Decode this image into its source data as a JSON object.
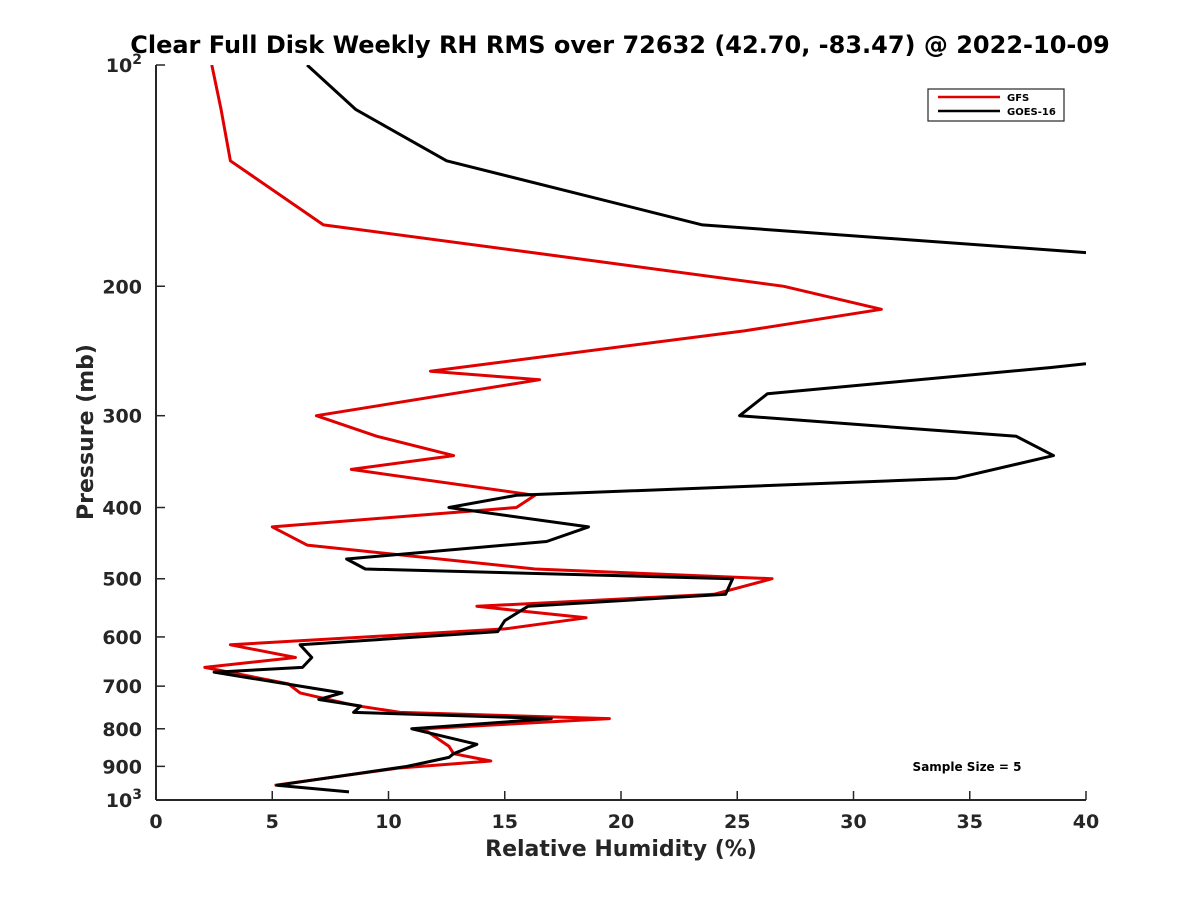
{
  "chart_data": {
    "type": "line",
    "title": "Clear Full Disk Weekly RH RMS over 72632 (42.70, -83.47) @ 2022-10-09",
    "xlabel": "Relative Humidity (%)",
    "ylabel": "Pressure (mb)",
    "xlim": [
      0,
      40
    ],
    "ylim": [
      100,
      1000
    ],
    "y_scale": "log",
    "y_reversed": true,
    "x_ticks": [
      0,
      5,
      10,
      15,
      20,
      25,
      30,
      35,
      40
    ],
    "y_ticks": [
      {
        "value": 100,
        "label": "10",
        "sup": "2"
      },
      {
        "value": 200,
        "label": "200",
        "sup": ""
      },
      {
        "value": 300,
        "label": "300",
        "sup": ""
      },
      {
        "value": 400,
        "label": "400",
        "sup": ""
      },
      {
        "value": 500,
        "label": "500",
        "sup": ""
      },
      {
        "value": 600,
        "label": "600",
        "sup": ""
      },
      {
        "value": 700,
        "label": "700",
        "sup": ""
      },
      {
        "value": 800,
        "label": "800",
        "sup": ""
      },
      {
        "value": 900,
        "label": "900",
        "sup": ""
      },
      {
        "value": 1000,
        "label": "10",
        "sup": "3"
      }
    ],
    "grid": false,
    "legend_position": "top-right",
    "annotation": "Sample Size = 5",
    "series": [
      {
        "name": "GFS",
        "color": "#e00000",
        "points": [
          [
            2.4,
            100
          ],
          [
            2.8,
            115
          ],
          [
            3.2,
            135
          ],
          [
            7.2,
            165
          ],
          [
            16.2,
            180
          ],
          [
            27.0,
            200
          ],
          [
            31.2,
            215
          ],
          [
            25.3,
            230
          ],
          [
            11.8,
            261
          ],
          [
            16.5,
            268
          ],
          [
            6.9,
            300
          ],
          [
            9.5,
            320
          ],
          [
            12.8,
            340
          ],
          [
            8.4,
            355
          ],
          [
            16.3,
            385
          ],
          [
            15.5,
            400
          ],
          [
            5.0,
            425
          ],
          [
            6.5,
            450
          ],
          [
            16.3,
            485
          ],
          [
            26.5,
            500
          ],
          [
            24.0,
            525
          ],
          [
            13.8,
            545
          ],
          [
            18.5,
            565
          ],
          [
            15.0,
            585
          ],
          [
            3.2,
            615
          ],
          [
            6.0,
            640
          ],
          [
            2.1,
            660
          ],
          [
            5.7,
            695
          ],
          [
            6.2,
            715
          ],
          [
            8.5,
            743
          ],
          [
            10.5,
            760
          ],
          [
            19.5,
            775
          ],
          [
            11.5,
            800
          ],
          [
            12.0,
            820
          ],
          [
            12.6,
            845
          ],
          [
            12.8,
            865
          ],
          [
            14.4,
            885
          ],
          [
            10.4,
            905
          ],
          [
            5.1,
            955
          ]
        ]
      },
      {
        "name": "GOES-16",
        "color": "#000000",
        "points": [
          [
            6.5,
            100
          ],
          [
            8.6,
            115
          ],
          [
            12.5,
            135
          ],
          [
            23.5,
            165
          ],
          [
            40.0,
            180
          ],
          [
            null,
            200
          ],
          [
            40.0,
            255
          ],
          [
            38.5,
            258
          ],
          [
            26.3,
            280
          ],
          [
            25.1,
            300
          ],
          [
            37.0,
            320
          ],
          [
            38.6,
            340
          ],
          [
            34.4,
            365
          ],
          [
            15.5,
            385
          ],
          [
            12.6,
            400
          ],
          [
            18.6,
            425
          ],
          [
            16.8,
            445
          ],
          [
            8.2,
            470
          ],
          [
            9.0,
            485
          ],
          [
            24.8,
            500
          ],
          [
            24.5,
            525
          ],
          [
            16.0,
            545
          ],
          [
            15.0,
            570
          ],
          [
            14.7,
            590
          ],
          [
            6.2,
            615
          ],
          [
            6.7,
            640
          ],
          [
            6.3,
            660
          ],
          [
            2.5,
            670
          ],
          [
            6.2,
            700
          ],
          [
            8.0,
            715
          ],
          [
            7.0,
            730
          ],
          [
            8.8,
            745
          ],
          [
            8.5,
            760
          ],
          [
            17.0,
            775
          ],
          [
            11.0,
            800
          ],
          [
            13.8,
            840
          ],
          [
            12.8,
            865
          ],
          [
            12.6,
            875
          ],
          [
            10.8,
            900
          ],
          [
            5.2,
            955
          ],
          [
            8.3,
            975
          ]
        ]
      }
    ]
  }
}
